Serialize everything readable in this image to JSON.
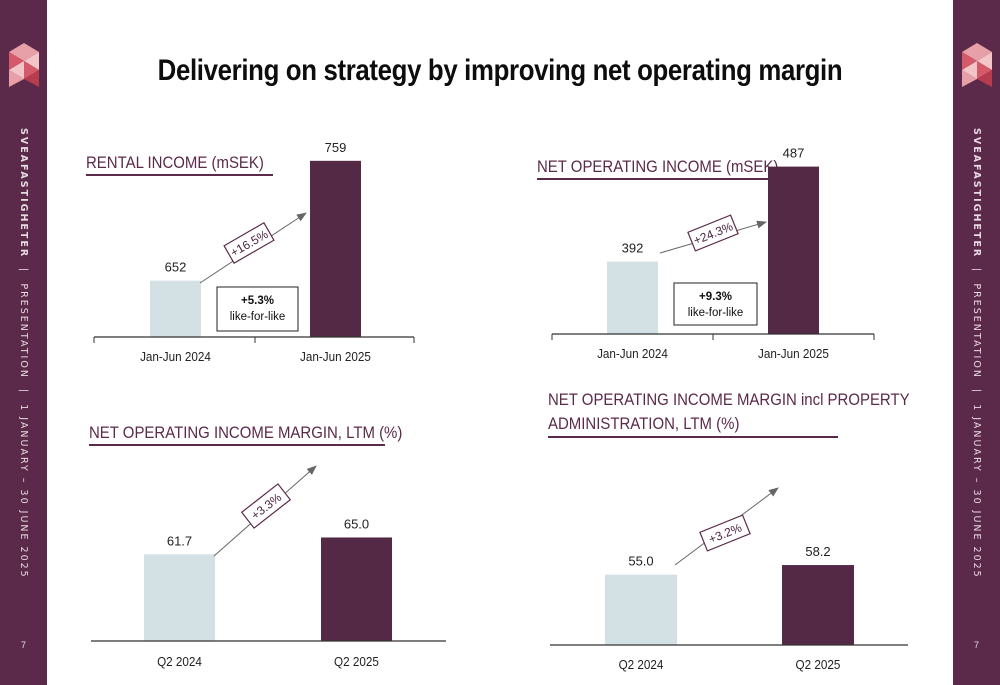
{
  "page": {
    "title": "Delivering on strategy by improving net operating margin",
    "side_brand": "SVEAFASTIGHETER",
    "side_doc": "PRESENTATION",
    "side_period": "1 JANUARY – 30 JUNE 2025",
    "side_sep": "|",
    "page_number": "7"
  },
  "colors": {
    "brand": "#5b2a4a",
    "bar_prior": "#d3e0e4",
    "bar_current": "#532945",
    "axis": "#333333",
    "arrow": "#666666"
  },
  "chart_data": [
    {
      "type": "bar",
      "title": "RENTAL INCOME (mSEK)",
      "categories": [
        "Jan-Jun 2024",
        "Jan-Jun 2025"
      ],
      "values": [
        652,
        759
      ],
      "value_labels": [
        "652",
        "759"
      ],
      "change_label": "+16.5%",
      "like_for_like": {
        "value": "+5.3%",
        "label": "like-for-like"
      }
    },
    {
      "type": "bar",
      "title": "NET OPERATING INCOME (mSEK)",
      "categories": [
        "Jan-Jun 2024",
        "Jan-Jun 2025"
      ],
      "values": [
        392,
        487
      ],
      "value_labels": [
        "392",
        "487"
      ],
      "change_label": "+24.3%",
      "like_for_like": {
        "value": "+9.3%",
        "label": "like-for-like"
      }
    },
    {
      "type": "bar",
      "title": "NET OPERATING INCOME MARGIN, LTM (%)",
      "categories": [
        "Q2 2024",
        "Q2 2025"
      ],
      "values": [
        61.7,
        65.0
      ],
      "value_labels": [
        "61.7",
        "65.0"
      ],
      "change_label": "+3.3%"
    },
    {
      "type": "bar",
      "title": "NET OPERATING INCOME MARGIN incl PROPERTY ADMINISTRATION, LTM (%)",
      "title_lines": [
        "NET OPERATING INCOME MARGIN incl PROPERTY",
        "ADMINISTRATION, LTM (%)"
      ],
      "categories": [
        "Q2 2024",
        "Q2 2025"
      ],
      "values": [
        55.0,
        58.2
      ],
      "value_labels": [
        "55.0",
        "58.2"
      ],
      "change_label": "+3.2%"
    }
  ]
}
